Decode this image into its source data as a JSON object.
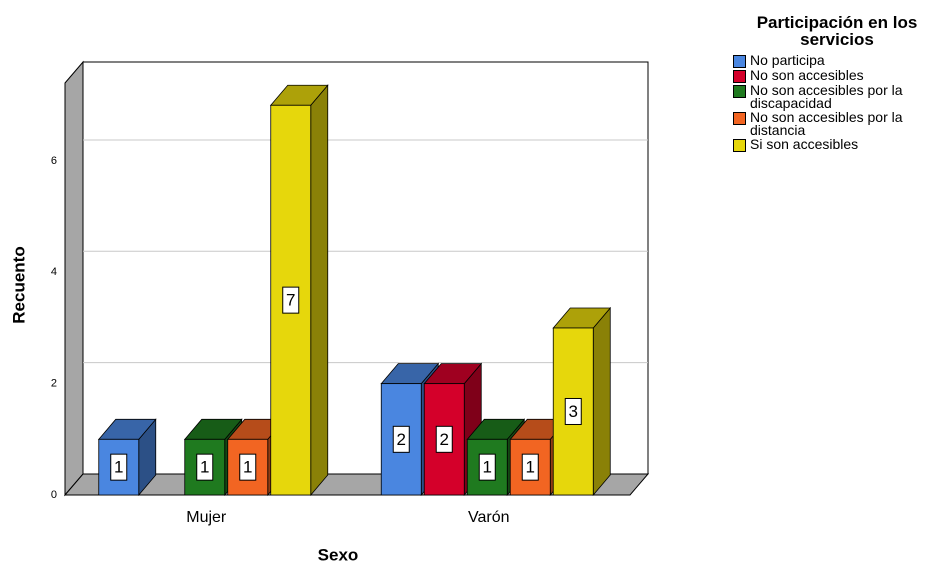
{
  "chart_data": {
    "type": "bar3d",
    "x_label": "Sexo",
    "y_label": "Recuento",
    "legend_title": "Participación en los servicios",
    "categories": [
      "Mujer",
      "Varón"
    ],
    "series": [
      {
        "name": "No participa",
        "color": "#4a86e0",
        "values": [
          1,
          2
        ]
      },
      {
        "name": "No son accesibles",
        "color": "#d4002a",
        "values": [
          null,
          2
        ]
      },
      {
        "name": "No son accesibles por la discapacidad",
        "color": "#1f7a1f",
        "values": [
          1,
          1
        ]
      },
      {
        "name": "No son accesibles por la distancia",
        "color": "#f26522",
        "values": [
          1,
          1
        ]
      },
      {
        "name": "Si son accesibles",
        "color": "#e6d70c",
        "values": [
          7,
          3
        ]
      }
    ],
    "ylim": [
      0,
      7.4
    ],
    "yticks": [
      0,
      2,
      4,
      6
    ],
    "grid": true,
    "legend": "right"
  }
}
